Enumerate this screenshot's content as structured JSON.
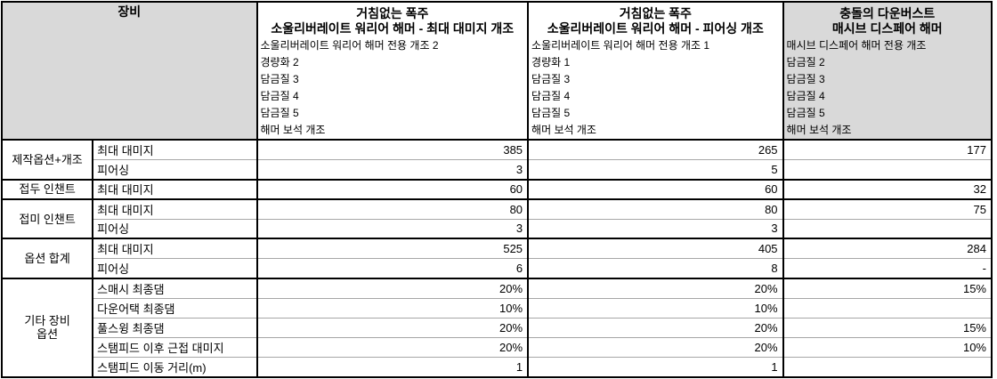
{
  "table": {
    "corner_header": "장비",
    "columns": [
      {
        "title_line1": "거침없는 폭주",
        "title_line2": "소울리버레이트 워리어 해머 - 최대 대미지 개조",
        "details": [
          "소울리버레이트 워리어 해머 전용 개조 2",
          "경량화 2",
          "담금질 3",
          "담금질 4",
          "담금질 5",
          "해머 보석 개조"
        ],
        "highlighted": false
      },
      {
        "title_line1": "거침없는 폭주",
        "title_line2": "소울리버레이트 워리어 해머 - 피어싱 개조",
        "details": [
          "소울리버레이트 워리어 해머 전용 개조 1",
          "경량화 1",
          "담금질 3",
          "담금질 4",
          "담금질 5",
          "해머 보석 개조"
        ],
        "highlighted": false
      },
      {
        "title_line1": "충돌의 다운버스트",
        "title_line2": "매시브 디스페어 해머",
        "details": [
          "매시브 디스페어 해머 전용 개조",
          "담금질 2",
          "담금질 3",
          "담금질 4",
          "담금질 5",
          "해머 보석 개조"
        ],
        "highlighted": true
      }
    ],
    "groups": [
      {
        "label": "제작옵션+개조",
        "rows": [
          {
            "label": "최대 대미지",
            "values": [
              "385",
              "265",
              "177"
            ]
          },
          {
            "label": "피어싱",
            "values": [
              "3",
              "5",
              ""
            ]
          }
        ]
      },
      {
        "label": "접두 인챈트",
        "rows": [
          {
            "label": "최대 대미지",
            "values": [
              "60",
              "60",
              "32"
            ]
          }
        ]
      },
      {
        "label": "접미 인챈트",
        "rows": [
          {
            "label": "최대 대미지",
            "values": [
              "80",
              "80",
              "75"
            ]
          },
          {
            "label": "피어싱",
            "values": [
              "3",
              "3",
              ""
            ]
          }
        ]
      },
      {
        "label": "옵션 합계",
        "rows": [
          {
            "label": "최대 대미지",
            "values": [
              "525",
              "405",
              "284"
            ]
          },
          {
            "label": "피어싱",
            "values": [
              "6",
              "8",
              "-"
            ]
          }
        ]
      },
      {
        "label": "기타 장비\n옵션",
        "rows": [
          {
            "label": "스매시 최종댐",
            "values": [
              "20%",
              "20%",
              "15%"
            ]
          },
          {
            "label": "다운어택 최종댐",
            "values": [
              "10%",
              "10%",
              ""
            ]
          },
          {
            "label": "풀스윙 최종댐",
            "values": [
              "20%",
              "20%",
              "15%"
            ]
          },
          {
            "label": "스탬피드 이후 근접 대미지",
            "values": [
              "20%",
              "20%",
              "10%"
            ]
          },
          {
            "label": "스탬피드 이동 거리(m)",
            "values": [
              "1",
              "1",
              ""
            ]
          }
        ]
      }
    ],
    "colors": {
      "header_fill": "#d9d9d9",
      "border_dark": "#000000",
      "border_light": "#a6a6a6"
    }
  }
}
